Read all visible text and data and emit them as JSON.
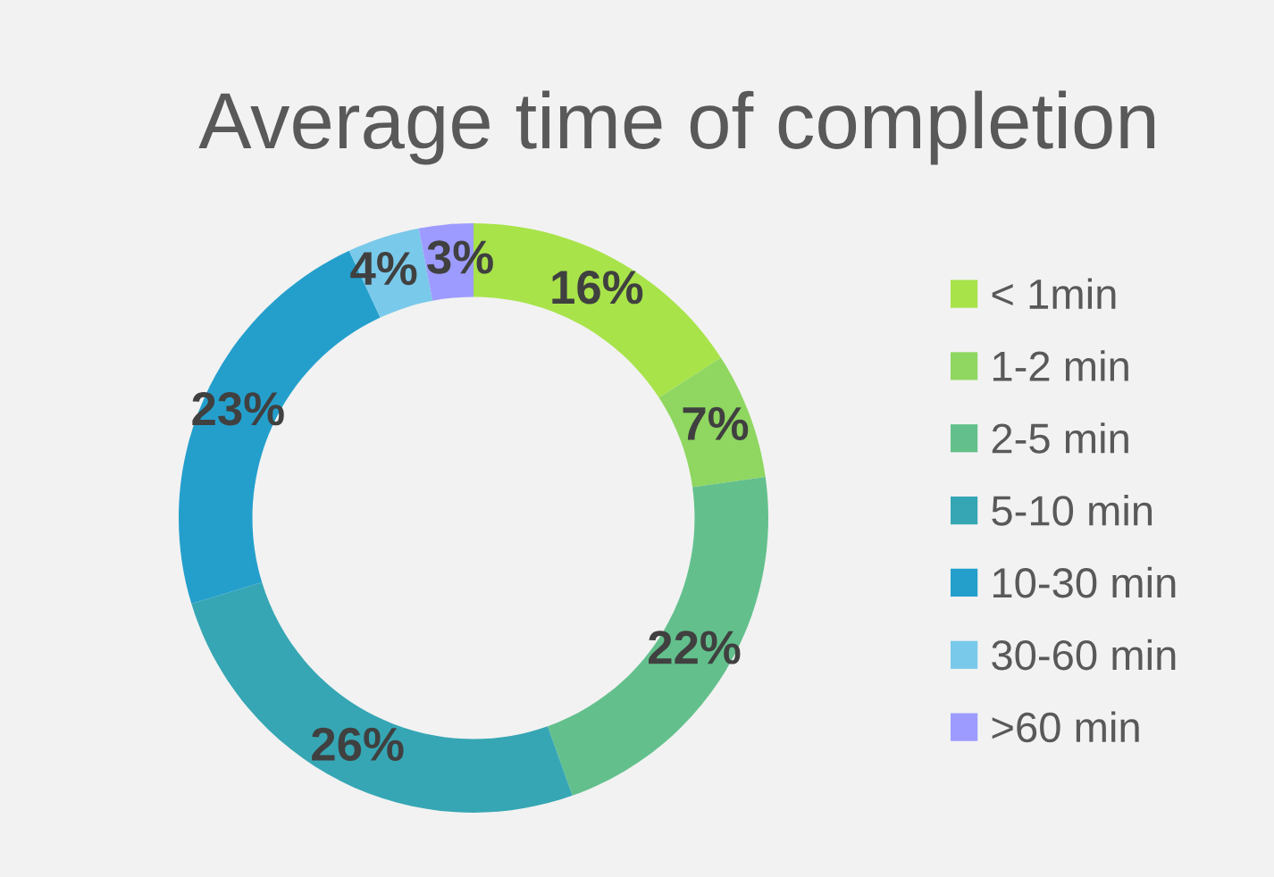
{
  "chart_data": {
    "type": "donut",
    "title": "Average time of completion",
    "categories": [
      "< 1min",
      "1-2 min",
      "2-5 min",
      "5-10 min",
      "10-30 min",
      "30-60 min",
      ">60 min"
    ],
    "values": [
      16,
      7,
      22,
      26,
      23,
      4,
      3
    ],
    "colors": [
      "#a8e34a",
      "#8fd760",
      "#63c08c",
      "#36a6b4",
      "#249fcc",
      "#79c9ea",
      "#9d9bff"
    ],
    "value_labels": [
      "16%",
      "7%",
      "22%",
      "26%",
      "23%",
      "4%",
      "3%"
    ],
    "legend": "right"
  }
}
